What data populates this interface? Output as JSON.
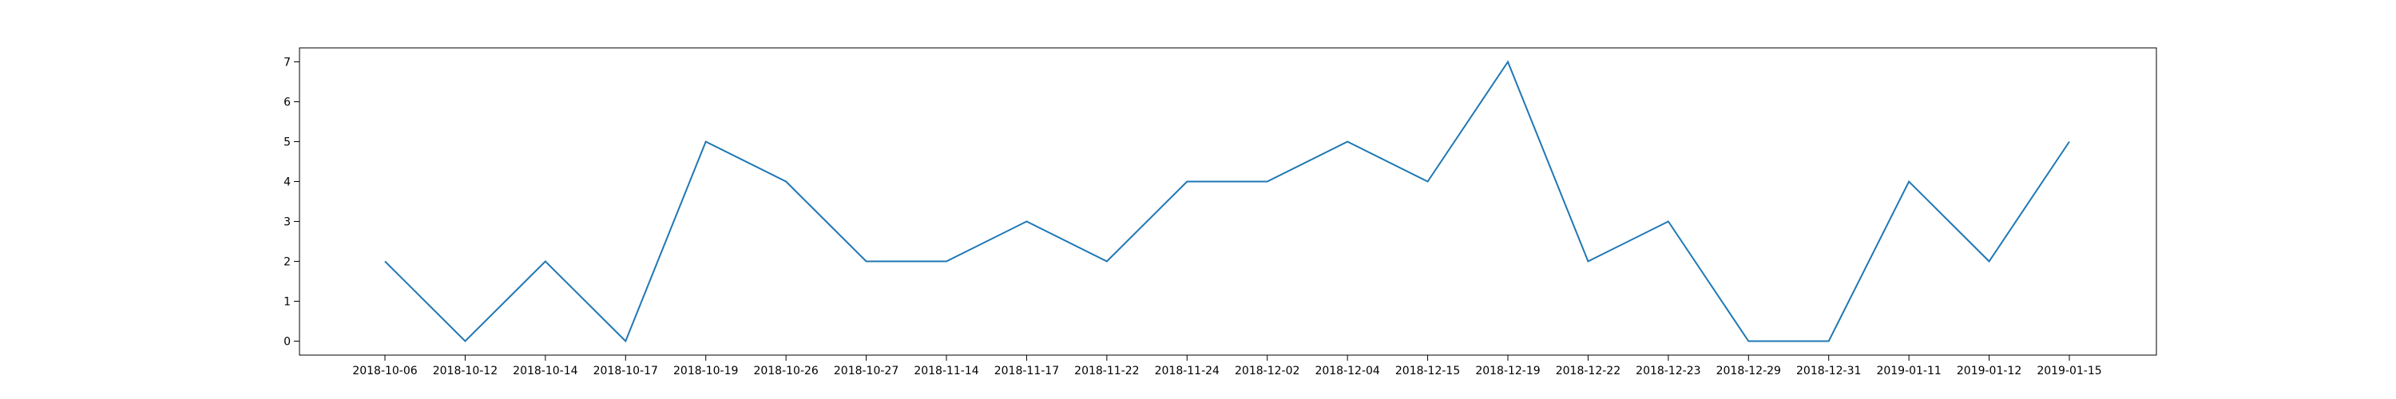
{
  "chart_data": {
    "type": "line",
    "title": "",
    "xlabel": "",
    "ylabel": "",
    "categories": [
      "2018-10-06",
      "2018-10-12",
      "2018-10-14",
      "2018-10-17",
      "2018-10-19",
      "2018-10-26",
      "2018-10-27",
      "2018-11-14",
      "2018-11-17",
      "2018-11-22",
      "2018-11-24",
      "2018-12-02",
      "2018-12-04",
      "2018-12-15",
      "2018-12-19",
      "2018-12-22",
      "2018-12-23",
      "2018-12-29",
      "2018-12-31",
      "2019-01-11",
      "2019-01-12",
      "2019-01-15"
    ],
    "series": [
      {
        "values": [
          2,
          0,
          2,
          0,
          5,
          4,
          2,
          2,
          3,
          2,
          4,
          4,
          5,
          4,
          7,
          2,
          3,
          0,
          0,
          4,
          2,
          5
        ]
      }
    ],
    "ylim": [
      -0.35,
      7.35
    ],
    "yticks": [
      0,
      1,
      2,
      3,
      4,
      5,
      6,
      7
    ],
    "grid": false,
    "legend": "none",
    "colors": {
      "line": "#1f77b4",
      "axes": "#000000",
      "background": "#ffffff"
    }
  }
}
